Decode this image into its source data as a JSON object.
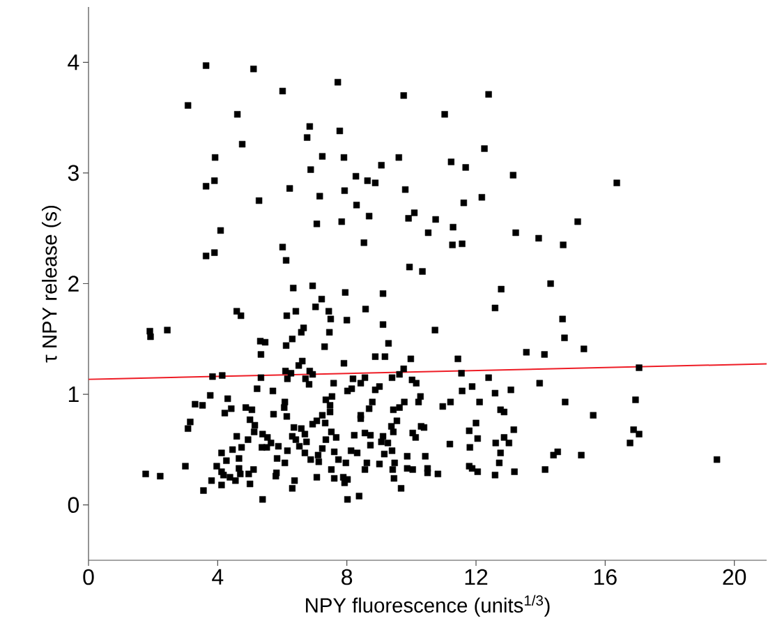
{
  "chart_data": {
    "type": "scatter",
    "xlabel": "NPY fluorescence (units$^{1/3}$)",
    "ylabel": "τ NPY release (s)",
    "xlim": [
      0,
      21
    ],
    "ylim": [
      -0.5,
      4.5
    ],
    "xticks": [
      0,
      4,
      8,
      12,
      16,
      20
    ],
    "yticks": [
      0,
      1,
      2,
      3,
      4
    ],
    "series": [
      {
        "color": "#000000",
        "marker": "square",
        "x": [
          3.64,
          5.11,
          6.01,
          7.72,
          9.76,
          3.08,
          4.61,
          6.85,
          7.78,
          6.77,
          4.76,
          3.92,
          7.24,
          7.91,
          9.61,
          6.88,
          9.07,
          8.28,
          8.64,
          8.88,
          3.64,
          3.9,
          6.23,
          7.16,
          7.93,
          9.81,
          8.3,
          5.28,
          8.69,
          9.91,
          10.09,
          7.07,
          7.84,
          4.09,
          10.52,
          6.01,
          8.53,
          3.64,
          3.9,
          6.12,
          9.94,
          10.34,
          6.94,
          6.34,
          7.95,
          9.12,
          7.22,
          12.39,
          11.03,
          12.26,
          11.23,
          11.68,
          13.15,
          16.36,
          12.18,
          11.62,
          10.75,
          11.29,
          11.27,
          11.57,
          13.23,
          13.94,
          14.7,
          15.15,
          14.31,
          12.78,
          1.9,
          1.92,
          2.44,
          4.59,
          4.72,
          6.14,
          6.42,
          7.03,
          7.44,
          7.5,
          8.0,
          8.58,
          9.12,
          7.46,
          6.66,
          6.59,
          5.32,
          5.47,
          6.12,
          6.31,
          7.31,
          9.29,
          5.34,
          8.88,
          9.18,
          9.98,
          7.91,
          6.62,
          6.51,
          9.76,
          3.84,
          4.14,
          5.34,
          6.1,
          6.27,
          6.16,
          6.85,
          6.94,
          6.72,
          6.83,
          7.59,
          8.19,
          8.56,
          8.43,
          9.4,
          9.63,
          10.02,
          10.15,
          5.22,
          5.71,
          8.02,
          8.15,
          8.88,
          9.01,
          3.77,
          7.54,
          7.35,
          10.28,
          10.22,
          3.3,
          3.53,
          4.31,
          6.08,
          8.79,
          9.78,
          4.42,
          4.22,
          4.87,
          5.06,
          6.06,
          7.48,
          8.69,
          9.44,
          9.63,
          5.73,
          6.14,
          7.24,
          7.48,
          8.43,
          3.15,
          3.08,
          5.0,
          5.15,
          7.07,
          7.33,
          9.55,
          8.43,
          5.13,
          6.36,
          6.59,
          6.94,
          9.38,
          9.44,
          10.3,
          10.39,
          4.59,
          4.94,
          5.39,
          5.54,
          5.65,
          6.31,
          6.42,
          6.7,
          6.75,
          7.52,
          7.67,
          7.35,
          8.23,
          8.56,
          8.73,
          9.12,
          10.04,
          10.13,
          9.07,
          9.27,
          4.12,
          4.46,
          4.74,
          5.37,
          5.52,
          5.88,
          6.16,
          6.53,
          6.7,
          7.24,
          7.11,
          7.61,
          8.13,
          8.32,
          8.73,
          9.16,
          9.4,
          4.27,
          4.66,
          5.84,
          6.08,
          6.88,
          7.13,
          7.74,
          7.97,
          8.62,
          9.01,
          9.48,
          9.87,
          10.43,
          3.0,
          3.97,
          4.66,
          5.11,
          7.52,
          8.56,
          9.42,
          9.87,
          10.04,
          10.5,
          1.77,
          2.22,
          4.12,
          4.18,
          4.38,
          4.7,
          4.96,
          5.82,
          7.07,
          7.61,
          7.89,
          10.5,
          3.81,
          4.55,
          5.8,
          6.38,
          7.93,
          8.02,
          9.46,
          4.12,
          5.0,
          3.56,
          6.31,
          9.68,
          8.38,
          5.39,
          8.02,
          12.59,
          10.73,
          14.68,
          14.74,
          15.34,
          13.56,
          14.12,
          11.44,
          11.55,
          17.05,
          12.39,
          13.97,
          11.88,
          11.57,
          12.59,
          13.08,
          11.21,
          10.97,
          12.11,
          14.76,
          16.94,
          12.76,
          12.87,
          15.63,
          12.0,
          11.79,
          13.17,
          16.88,
          17.05,
          12.05,
          12.87,
          11.19,
          11.81,
          12.61,
          13.02,
          16.77,
          12.76,
          14.53,
          14.4,
          15.26,
          19.46,
          12.72,
          11.79,
          11.88,
          12.05,
          10.82,
          12.59,
          13.19,
          14.14
        ],
        "values": [
          3.97,
          3.94,
          3.74,
          3.82,
          3.7,
          3.61,
          3.53,
          3.42,
          3.38,
          3.32,
          3.26,
          3.14,
          3.15,
          3.14,
          3.14,
          3.03,
          3.07,
          2.97,
          2.93,
          2.91,
          2.88,
          2.93,
          2.86,
          2.79,
          2.84,
          2.85,
          2.71,
          2.75,
          2.61,
          2.59,
          2.64,
          2.54,
          2.56,
          2.48,
          2.46,
          2.33,
          2.37,
          2.25,
          2.28,
          2.21,
          2.15,
          2.11,
          1.98,
          1.96,
          1.92,
          1.91,
          1.86,
          3.71,
          3.53,
          3.22,
          3.1,
          3.05,
          2.98,
          2.91,
          2.78,
          2.73,
          2.58,
          2.51,
          2.35,
          2.36,
          2.46,
          2.41,
          2.35,
          2.56,
          2.0,
          1.95,
          1.57,
          1.52,
          1.58,
          1.75,
          1.71,
          1.71,
          1.75,
          1.79,
          1.75,
          1.68,
          1.67,
          1.77,
          1.63,
          1.56,
          1.6,
          1.56,
          1.48,
          1.47,
          1.44,
          1.5,
          1.43,
          1.46,
          1.36,
          1.34,
          1.34,
          1.32,
          1.28,
          1.3,
          1.26,
          1.23,
          1.16,
          1.17,
          1.15,
          1.21,
          1.19,
          1.14,
          1.21,
          1.18,
          1.14,
          1.09,
          1.1,
          1.14,
          1.15,
          1.1,
          1.15,
          1.18,
          1.13,
          1.1,
          1.05,
          1.03,
          1.03,
          1.05,
          1.04,
          1.07,
          0.99,
          0.98,
          0.95,
          0.98,
          0.93,
          0.91,
          0.9,
          0.96,
          0.93,
          0.93,
          0.93,
          0.87,
          0.83,
          0.88,
          0.86,
          0.88,
          0.9,
          0.87,
          0.86,
          0.88,
          0.82,
          0.8,
          0.81,
          0.84,
          0.81,
          0.75,
          0.69,
          0.77,
          0.72,
          0.76,
          0.74,
          0.76,
          0.78,
          0.66,
          0.7,
          0.69,
          0.73,
          0.71,
          0.66,
          0.71,
          0.7,
          0.62,
          0.59,
          0.64,
          0.61,
          0.56,
          0.62,
          0.59,
          0.64,
          0.57,
          0.66,
          0.61,
          0.59,
          0.63,
          0.65,
          0.63,
          0.62,
          0.65,
          0.61,
          0.57,
          0.56,
          0.47,
          0.5,
          0.52,
          0.52,
          0.52,
          0.53,
          0.49,
          0.53,
          0.47,
          0.51,
          0.45,
          0.48,
          0.49,
          0.47,
          0.54,
          0.46,
          0.49,
          0.4,
          0.42,
          0.42,
          0.38,
          0.41,
          0.39,
          0.41,
          0.38,
          0.38,
          0.37,
          0.38,
          0.44,
          0.44,
          0.35,
          0.35,
          0.33,
          0.32,
          0.32,
          0.32,
          0.32,
          0.33,
          0.32,
          0.33,
          0.28,
          0.26,
          0.3,
          0.27,
          0.25,
          0.28,
          0.28,
          0.29,
          0.25,
          0.24,
          0.25,
          0.29,
          0.22,
          0.22,
          0.26,
          0.22,
          0.2,
          0.23,
          0.24,
          0.18,
          0.19,
          0.13,
          0.15,
          0.15,
          0.08,
          0.05,
          0.05,
          1.78,
          1.58,
          1.68,
          1.51,
          1.41,
          1.38,
          1.36,
          1.32,
          1.19,
          1.24,
          1.15,
          1.1,
          1.07,
          1.03,
          1.01,
          1.04,
          0.93,
          0.89,
          0.93,
          0.93,
          0.95,
          0.86,
          0.84,
          0.81,
          0.74,
          0.67,
          0.68,
          0.68,
          0.64,
          0.6,
          0.61,
          0.55,
          0.52,
          0.56,
          0.56,
          0.56,
          0.47,
          0.48,
          0.45,
          0.45,
          0.41,
          0.38,
          0.35,
          0.33,
          0.3,
          0.28,
          0.27,
          0.3,
          0.32
        ]
      },
      {
        "type": "line",
        "color": "#ee1c25",
        "marker": "none",
        "x": [
          0,
          21
        ],
        "values": [
          1.135,
          1.275
        ]
      }
    ]
  }
}
